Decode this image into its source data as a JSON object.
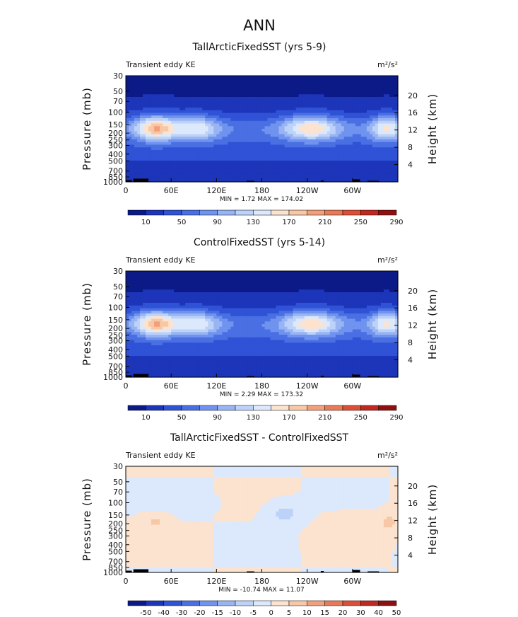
{
  "figure": {
    "title": "ANN",
    "colors": {
      "scale": [
        "#0b1a86",
        "#1d35b9",
        "#2f52d6",
        "#4a6fe3",
        "#6f93ee",
        "#98b4f3",
        "#bdd2f8",
        "#dce8fb",
        "#fbe3cf",
        "#f8c7a6",
        "#f2a07c",
        "#e97a57",
        "#dc4f36",
        "#c0291f",
        "#8f1010"
      ],
      "land": "#000000"
    }
  },
  "chart_data": [
    {
      "type": "heatmap",
      "title": "TallArcticFixedSST (yrs 5-9)",
      "variable_label": "Transient eddy KE",
      "units": "m²/s²",
      "ylabel": "Pressure (mb)",
      "y2label": "Height (km)",
      "xticks": [
        "0",
        "60E",
        "120E",
        "180",
        "120W",
        "60W"
      ],
      "yticks": [
        "30",
        "50",
        "70",
        "100",
        "150",
        "200",
        "250",
        "300",
        "400",
        "500",
        "700",
        "850",
        "1000"
      ],
      "y2ticks": [
        "20",
        "16",
        "12",
        "8",
        "4"
      ],
      "stats": "MIN =    1.72   MAX =  174.02",
      "min": 1.72,
      "max": 174.02,
      "colorbar_labels": [
        "10",
        "50",
        "90",
        "130",
        "170",
        "210",
        "250",
        "290"
      ]
    },
    {
      "type": "heatmap",
      "title": "ControlFixedSST (yrs 5-14)",
      "variable_label": "Transient eddy KE",
      "units": "m²/s²",
      "ylabel": "Pressure (mb)",
      "y2label": "Height (km)",
      "xticks": [
        "0",
        "60E",
        "120E",
        "180",
        "120W",
        "60W"
      ],
      "yticks": [
        "30",
        "50",
        "70",
        "100",
        "150",
        "200",
        "250",
        "300",
        "400",
        "500",
        "700",
        "850",
        "1000"
      ],
      "y2ticks": [
        "20",
        "16",
        "12",
        "8",
        "4"
      ],
      "stats": "MIN =    2.29   MAX =  173.32",
      "min": 2.29,
      "max": 173.32,
      "colorbar_labels": [
        "10",
        "50",
        "90",
        "130",
        "170",
        "210",
        "250",
        "290"
      ]
    },
    {
      "type": "heatmap",
      "title": "TallArcticFixedSST - ControlFixedSST",
      "variable_label": "Transient eddy KE",
      "units": "m²/s²",
      "ylabel": "Pressure (mb)",
      "y2label": "Height (km)",
      "xticks": [
        "0",
        "60E",
        "120E",
        "180",
        "120W",
        "60W"
      ],
      "yticks": [
        "30",
        "50",
        "70",
        "100",
        "150",
        "200",
        "250",
        "300",
        "400",
        "500",
        "700",
        "850",
        "1000"
      ],
      "y2ticks": [
        "20",
        "16",
        "12",
        "8",
        "4"
      ],
      "stats": "MIN = -10.74   MAX =   11.07",
      "min": -10.74,
      "max": 11.07,
      "colorbar_labels": [
        "-50",
        "-40",
        "-30",
        "-20",
        "-15",
        "-10",
        "-5",
        "0",
        "5",
        "10",
        "15",
        "20",
        "30",
        "40",
        "50"
      ]
    }
  ]
}
